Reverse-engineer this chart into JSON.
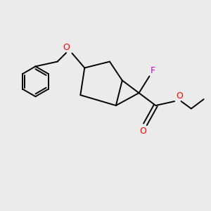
{
  "bg_color": "#ebebeb",
  "bond_color": "#000000",
  "O_color": "#ff0000",
  "F_color": "#cc00cc",
  "line_width": 1.4,
  "figsize": [
    3.0,
    3.0
  ],
  "dpi": 100,
  "xlim": [
    0,
    10
  ],
  "ylim": [
    0,
    10
  ]
}
